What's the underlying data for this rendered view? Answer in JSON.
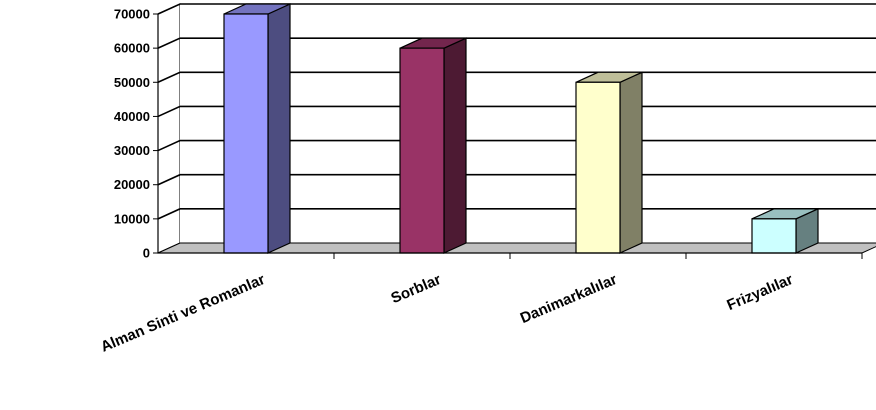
{
  "chart_data": {
    "type": "bar",
    "title": "",
    "xlabel": "",
    "ylabel": "",
    "ylim": [
      0,
      70000
    ],
    "yticks": [
      0,
      10000,
      20000,
      30000,
      40000,
      50000,
      60000,
      70000
    ],
    "yticklabels": [
      "0",
      "10000",
      "20000",
      "30000",
      "40000",
      "50000",
      "60000",
      "70000"
    ],
    "categories": [
      "Alman Sinti ve Romanlar",
      "Sorblar",
      "Danimarkalılar",
      "Frizyalılar"
    ],
    "values": [
      70000,
      60000,
      50000,
      10000
    ],
    "grid": true,
    "legend": "none",
    "style": "3d-column",
    "colors": {
      "front": [
        "#9999FF",
        "#993366",
        "#FFFFCC",
        "#CCFFFF"
      ],
      "side": [
        "#4D4D80",
        "#4D1A33",
        "#808066",
        "#668080"
      ],
      "top": [
        "#7373BF",
        "#73264D",
        "#BFBF99",
        "#99BFBF"
      ],
      "floor": "#C0C0C0",
      "wall": "#FFFFFF",
      "gridline": "#000000"
    }
  }
}
